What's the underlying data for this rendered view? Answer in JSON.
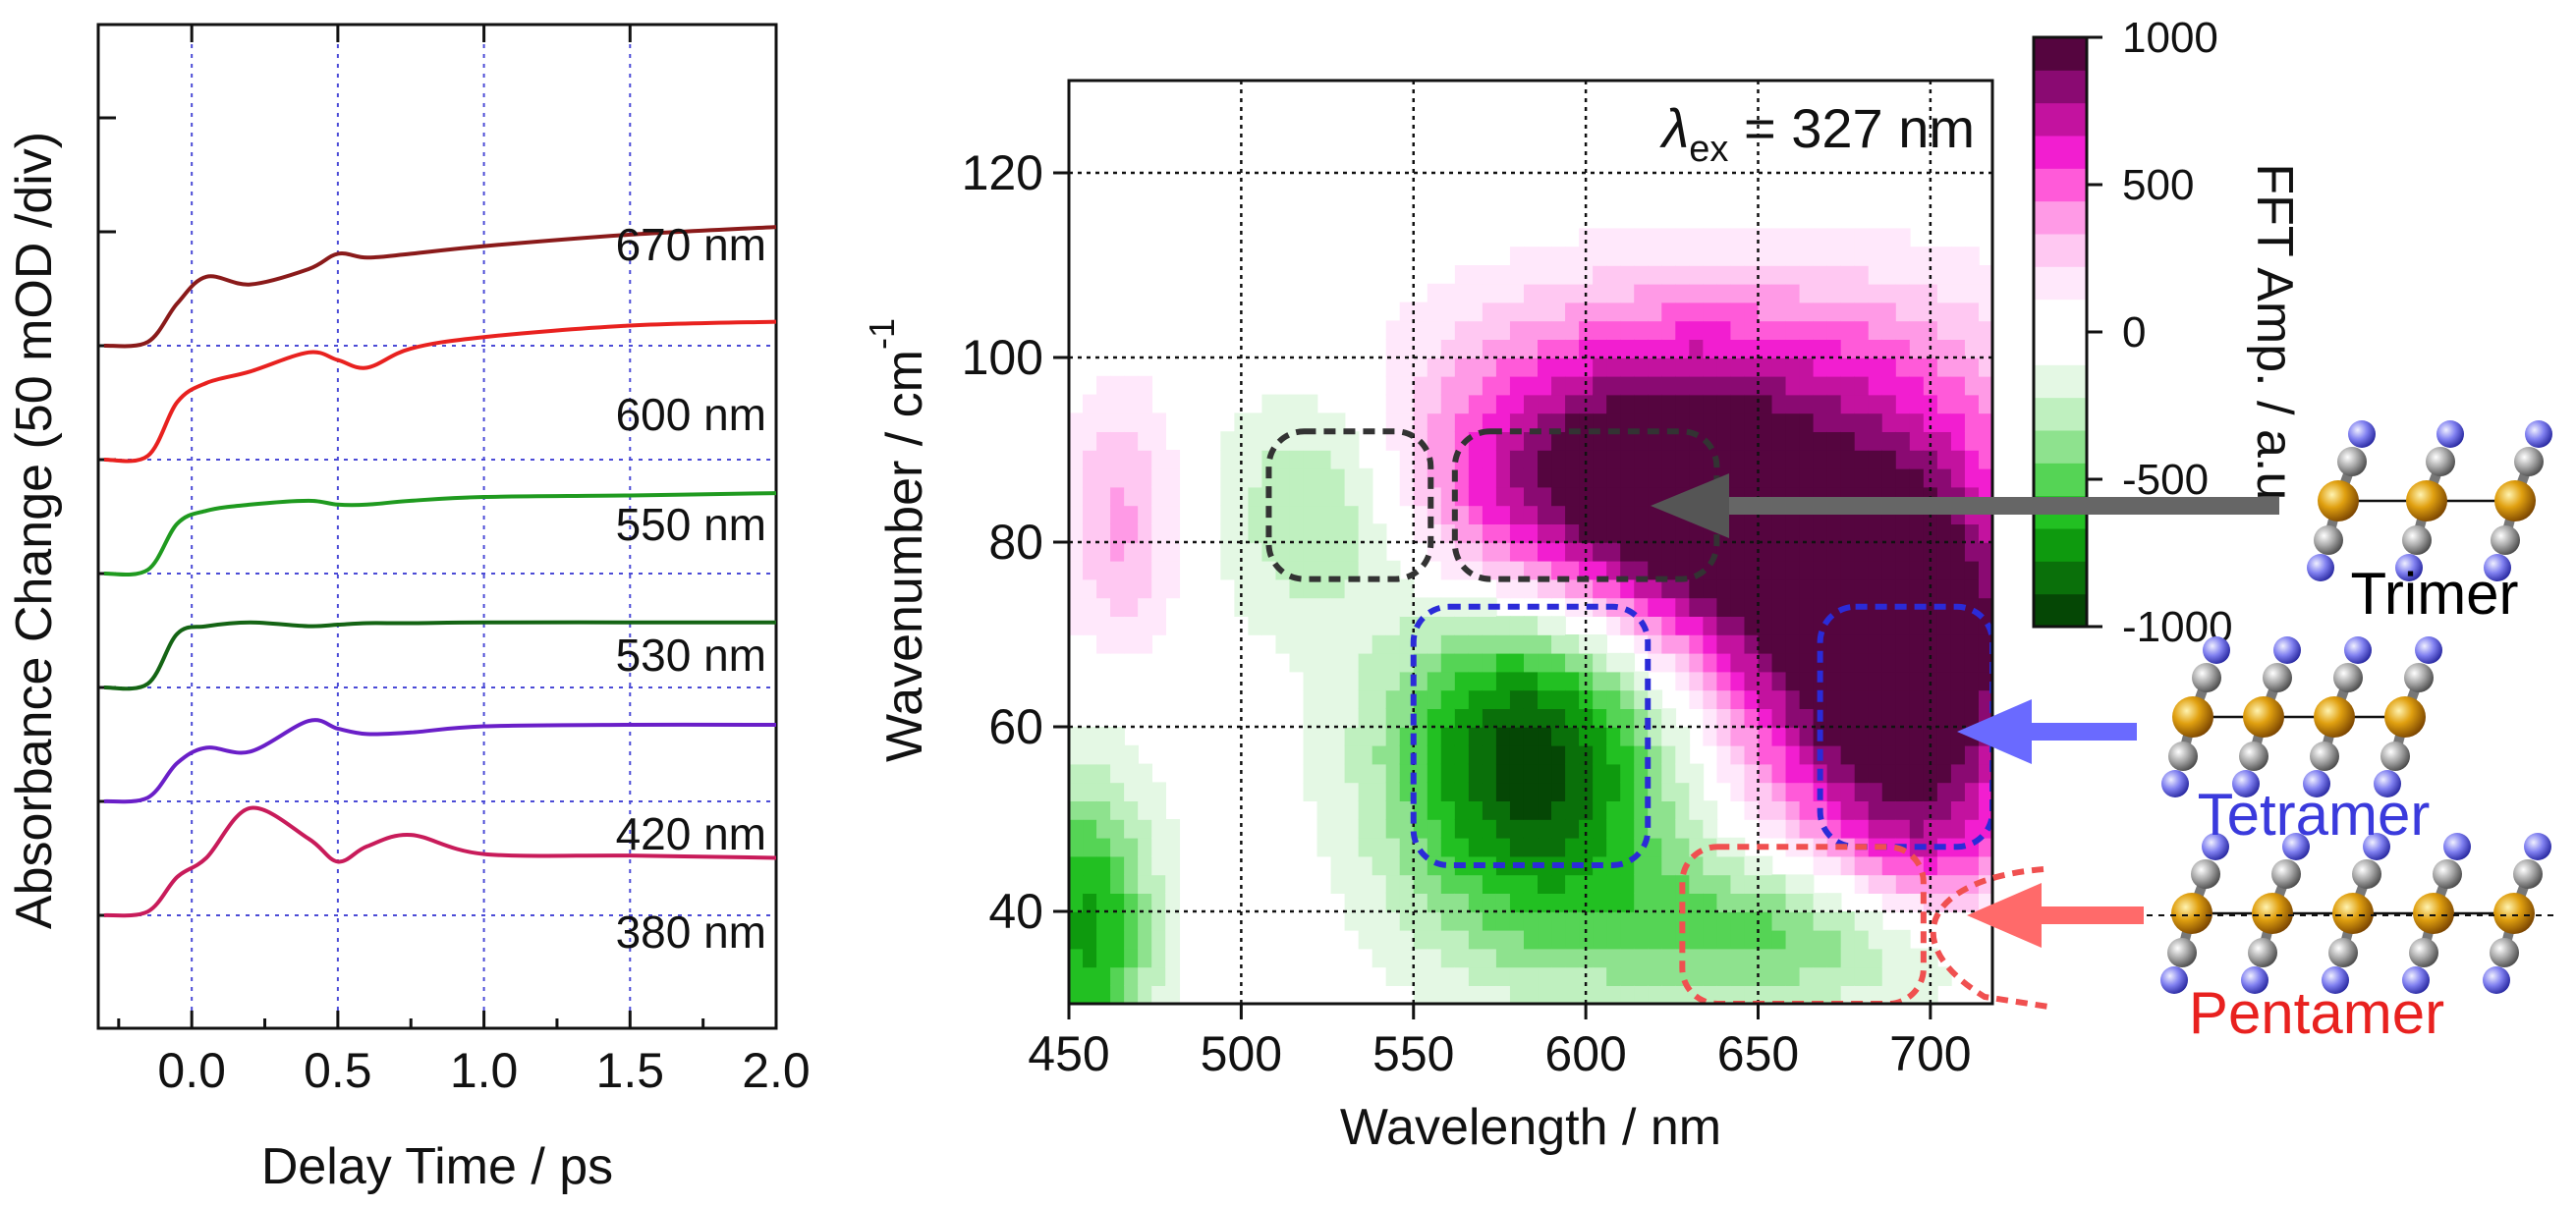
{
  "left_panel": {
    "xlabel": "Delay Time / ps",
    "ylabel": "Absorbance Change (50 mOD /div)",
    "xticks": [
      "0.0",
      "0.5",
      "1.0",
      "1.5",
      "2.0"
    ],
    "traces": [
      {
        "label": "670 nm",
        "color": "#8a1a1a"
      },
      {
        "label": "600 nm",
        "color": "#e8211f"
      },
      {
        "label": "550 nm",
        "color": "#1f9a1f"
      },
      {
        "label": "530 nm",
        "color": "#146414"
      },
      {
        "label": "420 nm",
        "color": "#6a1fc8"
      },
      {
        "label": "380 nm",
        "color": "#c81b5a"
      }
    ]
  },
  "right_panel": {
    "xlabel": "Wavelength / nm",
    "ylabel": "Wavenumber / cm",
    "ylabel_sup": "-1",
    "annotation_lambda": "λ",
    "annotation_sub": "ex",
    "annotation_rest": " = 327 nm",
    "xticks": [
      "450",
      "500",
      "550",
      "600",
      "650",
      "700"
    ],
    "yticks": [
      "40",
      "60",
      "80",
      "100",
      "120"
    ],
    "colorbar": {
      "label": "FFT Amp. / a.u.",
      "ticks": [
        "1000",
        "500",
        "0",
        "-500",
        "-1000"
      ]
    }
  },
  "species": {
    "trimer": {
      "label": "Trimer",
      "color": "#000000"
    },
    "tetramer": {
      "label": "Tetramer",
      "color": "#3a3adc"
    },
    "pentamer": {
      "label": "Pentamer",
      "color": "#e8211f"
    }
  },
  "chart_data": [
    {
      "type": "line",
      "xlabel": "Delay Time / ps",
      "ylabel": "Absorbance Change (50 mOD /div)",
      "xlim": [
        -0.32,
        2.0
      ],
      "x": [
        -0.3,
        -0.15,
        -0.05,
        0.05,
        0.2,
        0.4,
        0.5,
        0.6,
        0.75,
        1.0,
        1.5,
        2.0
      ],
      "series": [
        {
          "name": "670 nm",
          "offset_div": 5,
          "values": [
            0,
            0.05,
            0.55,
            0.9,
            0.8,
            1.0,
            1.2,
            1.15,
            1.2,
            1.3,
            1.45,
            1.55
          ]
        },
        {
          "name": "600 nm",
          "offset_div": 4,
          "values": [
            0,
            0.05,
            0.75,
            1.0,
            1.15,
            1.4,
            1.3,
            1.2,
            1.45,
            1.6,
            1.75,
            1.8
          ]
        },
        {
          "name": "550 nm",
          "offset_div": 3,
          "values": [
            0,
            0.05,
            0.65,
            0.82,
            0.9,
            0.95,
            0.9,
            0.9,
            0.95,
            1.0,
            1.02,
            1.05
          ]
        },
        {
          "name": "530 nm",
          "offset_div": 2,
          "values": [
            0,
            0.05,
            0.7,
            0.8,
            0.85,
            0.8,
            0.82,
            0.84,
            0.84,
            0.85,
            0.85,
            0.85
          ]
        },
        {
          "name": "420 nm",
          "offset_div": 1,
          "values": [
            0,
            0.05,
            0.5,
            0.7,
            0.65,
            1.05,
            0.95,
            0.88,
            0.9,
            0.98,
            1.0,
            1.0
          ]
        },
        {
          "name": "380 nm",
          "offset_div": 0,
          "values": [
            0,
            0.05,
            0.5,
            0.75,
            1.4,
            1.0,
            0.7,
            0.9,
            1.05,
            0.8,
            0.78,
            0.75
          ]
        }
      ]
    },
    {
      "type": "heatmap",
      "xlabel": "Wavelength / nm",
      "ylabel": "Wavenumber / cm-1",
      "xlim": [
        450,
        718
      ],
      "ylim": [
        30,
        130
      ],
      "zlim": [
        -1000,
        1000
      ],
      "colorbar_label": "FFT Amp. / a.u.",
      "features": [
        {
          "wavelength": 525,
          "wavenumber": 84,
          "amplitude": -450,
          "sw": 22,
          "sk": 9
        },
        {
          "wavelength": 600,
          "wavenumber": 85,
          "amplitude": 900,
          "sw": 42,
          "sk": 10
        },
        {
          "wavelength": 650,
          "wavenumber": 80,
          "amplitude": 700,
          "sw": 35,
          "sk": 12
        },
        {
          "wavelength": 585,
          "wavenumber": 57,
          "amplitude": -1000,
          "sw": 30,
          "sk": 14
        },
        {
          "wavelength": 690,
          "wavenumber": 62,
          "amplitude": 950,
          "sw": 30,
          "sk": 12
        },
        {
          "wavelength": 700,
          "wavenumber": 80,
          "amplitude": 500,
          "sw": 25,
          "sk": 14
        },
        {
          "wavelength": 660,
          "wavenumber": 38,
          "amplitude": -500,
          "sw": 40,
          "sk": 6
        },
        {
          "wavelength": 455,
          "wavenumber": 38,
          "amplitude": -700,
          "sw": 14,
          "sk": 12
        },
        {
          "wavelength": 465,
          "wavenumber": 82,
          "amplitude": 350,
          "sw": 12,
          "sk": 10
        },
        {
          "wavelength": 640,
          "wavenumber": 100,
          "amplitude": 350,
          "sw": 50,
          "sk": 8
        },
        {
          "wavelength": 700,
          "wavenumber": 45,
          "amplitude": 350,
          "sw": 20,
          "sk": 6
        }
      ],
      "regions": [
        {
          "species": "Trimer",
          "wavelength": [
            508,
            555
          ],
          "wavenumber": [
            76,
            92
          ]
        },
        {
          "species": "Trimer",
          "wavelength": [
            562,
            638
          ],
          "wavenumber": [
            76,
            92
          ]
        },
        {
          "species": "Tetramer",
          "wavelength": [
            550,
            618
          ],
          "wavenumber": [
            45,
            73
          ]
        },
        {
          "species": "Tetramer",
          "wavelength": [
            668,
            718
          ],
          "wavenumber": [
            47,
            73
          ]
        },
        {
          "species": "Pentamer",
          "wavelength": [
            628,
            698
          ],
          "wavenumber": [
            30,
            47
          ]
        }
      ]
    }
  ]
}
